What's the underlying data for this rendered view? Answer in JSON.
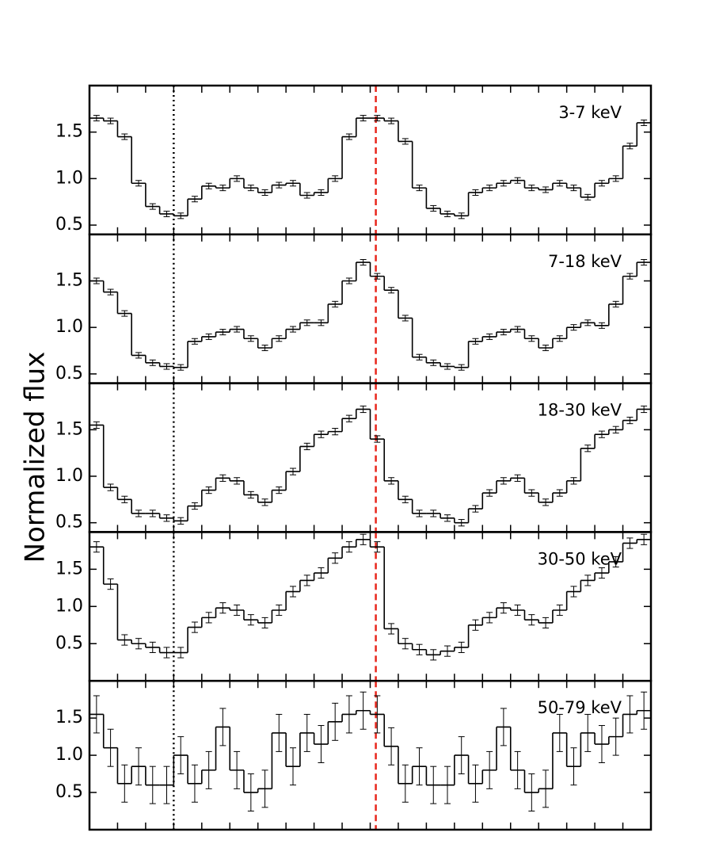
{
  "ylabel": "Normalized flux",
  "vlines": [
    {
      "x": 0.3,
      "color": "#000000",
      "style": "dotted"
    },
    {
      "x": 1.02,
      "color": "#e8261c",
      "style": "dashed"
    }
  ],
  "chart_data": [
    {
      "type": "histogram",
      "label": "3-7 keV",
      "xlim": [
        0,
        2
      ],
      "xticks": [
        0,
        0.1,
        0.2,
        0.3,
        0.4,
        0.5,
        0.6,
        0.7,
        0.8,
        0.9,
        1,
        1.1,
        1.2,
        1.3,
        1.4,
        1.5,
        1.6,
        1.7,
        1.8,
        1.9,
        2
      ],
      "ylim": [
        0.4,
        2.0
      ],
      "yticks": [
        0.5,
        {
          "value": 1,
          "label": "1.0"
        },
        1.5
      ],
      "bins": [
        0,
        0.05,
        0.1,
        0.15,
        0.2,
        0.25,
        0.3,
        0.35,
        0.4,
        0.45,
        0.5,
        0.55,
        0.6,
        0.65,
        0.7,
        0.75,
        0.8,
        0.85,
        0.9,
        0.95,
        1,
        1.05,
        1.1,
        1.15,
        1.2,
        1.25,
        1.3,
        1.35,
        1.4,
        1.45,
        1.5,
        1.55,
        1.6,
        1.65,
        1.7,
        1.75,
        1.8,
        1.85,
        1.9,
        1.95,
        2
      ],
      "values": [
        1.65,
        1.62,
        1.45,
        0.95,
        0.7,
        0.62,
        0.6,
        0.78,
        0.92,
        0.9,
        1.0,
        0.9,
        0.85,
        0.93,
        0.95,
        0.82,
        0.85,
        1.0,
        1.45,
        1.65,
        1.65,
        1.62,
        1.4,
        0.9,
        0.68,
        0.62,
        0.6,
        0.85,
        0.9,
        0.95,
        0.98,
        0.9,
        0.88,
        0.95,
        0.9,
        0.8,
        0.95,
        1.0,
        1.35,
        1.6
      ],
      "errors": [
        0.03,
        0.03,
        0.03,
        0.03,
        0.03,
        0.03,
        0.03,
        0.03,
        0.03,
        0.03,
        0.03,
        0.03,
        0.03,
        0.03,
        0.03,
        0.03,
        0.03,
        0.03,
        0.03,
        0.03,
        0.03,
        0.03,
        0.03,
        0.03,
        0.03,
        0.03,
        0.03,
        0.03,
        0.03,
        0.03,
        0.03,
        0.03,
        0.03,
        0.03,
        0.03,
        0.03,
        0.03,
        0.03,
        0.03,
        0.03
      ]
    },
    {
      "type": "histogram",
      "label": "7-18 keV",
      "xlim": [
        0,
        2
      ],
      "xticks": [
        0,
        0.1,
        0.2,
        0.3,
        0.4,
        0.5,
        0.6,
        0.7,
        0.8,
        0.9,
        1,
        1.1,
        1.2,
        1.3,
        1.4,
        1.5,
        1.6,
        1.7,
        1.8,
        1.9,
        2
      ],
      "ylim": [
        0.4,
        2.0
      ],
      "yticks": [
        0.5,
        {
          "value": 1,
          "label": "1.0"
        },
        1.5
      ],
      "bins": [
        0,
        0.05,
        0.1,
        0.15,
        0.2,
        0.25,
        0.3,
        0.35,
        0.4,
        0.45,
        0.5,
        0.55,
        0.6,
        0.65,
        0.7,
        0.75,
        0.8,
        0.85,
        0.9,
        0.95,
        1,
        1.05,
        1.1,
        1.15,
        1.2,
        1.25,
        1.3,
        1.35,
        1.4,
        1.45,
        1.5,
        1.55,
        1.6,
        1.65,
        1.7,
        1.75,
        1.8,
        1.85,
        1.9,
        1.95,
        2
      ],
      "values": [
        1.5,
        1.38,
        1.15,
        0.7,
        0.62,
        0.58,
        0.57,
        0.85,
        0.9,
        0.95,
        0.98,
        0.88,
        0.78,
        0.88,
        0.98,
        1.05,
        1.05,
        1.25,
        1.5,
        1.7,
        1.55,
        1.4,
        1.1,
        0.68,
        0.62,
        0.58,
        0.57,
        0.85,
        0.9,
        0.95,
        0.98,
        0.88,
        0.78,
        0.88,
        1.0,
        1.05,
        1.02,
        1.25,
        1.55,
        1.7
      ],
      "errors": [
        0.03,
        0.03,
        0.03,
        0.03,
        0.03,
        0.03,
        0.03,
        0.03,
        0.03,
        0.03,
        0.03,
        0.03,
        0.03,
        0.03,
        0.03,
        0.03,
        0.03,
        0.03,
        0.03,
        0.03,
        0.03,
        0.03,
        0.03,
        0.03,
        0.03,
        0.03,
        0.03,
        0.03,
        0.03,
        0.03,
        0.03,
        0.03,
        0.03,
        0.03,
        0.03,
        0.03,
        0.03,
        0.03,
        0.03,
        0.03
      ]
    },
    {
      "type": "histogram",
      "label": "18-30 keV",
      "xlim": [
        0,
        2
      ],
      "xticks": [
        0,
        0.1,
        0.2,
        0.3,
        0.4,
        0.5,
        0.6,
        0.7,
        0.8,
        0.9,
        1,
        1.1,
        1.2,
        1.3,
        1.4,
        1.5,
        1.6,
        1.7,
        1.8,
        1.9,
        2
      ],
      "ylim": [
        0.4,
        2.0
      ],
      "yticks": [
        0.5,
        {
          "value": 1,
          "label": "1.0"
        },
        1.5
      ],
      "bins": [
        0,
        0.05,
        0.1,
        0.15,
        0.2,
        0.25,
        0.3,
        0.35,
        0.4,
        0.45,
        0.5,
        0.55,
        0.6,
        0.65,
        0.7,
        0.75,
        0.8,
        0.85,
        0.9,
        0.95,
        1,
        1.05,
        1.1,
        1.15,
        1.2,
        1.25,
        1.3,
        1.35,
        1.4,
        1.45,
        1.5,
        1.55,
        1.6,
        1.65,
        1.7,
        1.75,
        1.8,
        1.85,
        1.9,
        1.95,
        2
      ],
      "values": [
        1.55,
        0.88,
        0.75,
        0.6,
        0.6,
        0.55,
        0.52,
        0.68,
        0.85,
        0.98,
        0.95,
        0.8,
        0.72,
        0.85,
        1.05,
        1.32,
        1.45,
        1.48,
        1.62,
        1.72,
        1.4,
        0.95,
        0.75,
        0.6,
        0.6,
        0.55,
        0.5,
        0.65,
        0.82,
        0.95,
        0.98,
        0.82,
        0.72,
        0.82,
        0.95,
        1.3,
        1.45,
        1.5,
        1.6,
        1.72
      ],
      "errors": [
        0.035,
        0.035,
        0.035,
        0.035,
        0.035,
        0.035,
        0.035,
        0.035,
        0.035,
        0.035,
        0.035,
        0.035,
        0.035,
        0.035,
        0.035,
        0.035,
        0.035,
        0.035,
        0.035,
        0.035,
        0.035,
        0.035,
        0.035,
        0.035,
        0.035,
        0.035,
        0.035,
        0.035,
        0.035,
        0.035,
        0.035,
        0.035,
        0.035,
        0.035,
        0.035,
        0.035,
        0.035,
        0.035,
        0.035,
        0.035
      ]
    },
    {
      "type": "histogram",
      "label": "30-50 keV",
      "xlim": [
        0,
        2
      ],
      "xticks": [
        0,
        0.1,
        0.2,
        0.3,
        0.4,
        0.5,
        0.6,
        0.7,
        0.8,
        0.9,
        1,
        1.1,
        1.2,
        1.3,
        1.4,
        1.5,
        1.6,
        1.7,
        1.8,
        1.9,
        2
      ],
      "ylim": [
        0,
        2.0
      ],
      "yticks": [
        0.5,
        {
          "value": 1,
          "label": "1.0"
        },
        1.5
      ],
      "bins": [
        0,
        0.05,
        0.1,
        0.15,
        0.2,
        0.25,
        0.3,
        0.35,
        0.4,
        0.45,
        0.5,
        0.55,
        0.6,
        0.65,
        0.7,
        0.75,
        0.8,
        0.85,
        0.9,
        0.95,
        1,
        1.05,
        1.1,
        1.15,
        1.2,
        1.25,
        1.3,
        1.35,
        1.4,
        1.45,
        1.5,
        1.55,
        1.6,
        1.65,
        1.7,
        1.75,
        1.8,
        1.85,
        1.9,
        1.95,
        2
      ],
      "values": [
        1.8,
        1.3,
        0.55,
        0.5,
        0.45,
        0.38,
        0.38,
        0.72,
        0.85,
        0.98,
        0.95,
        0.82,
        0.78,
        0.95,
        1.2,
        1.35,
        1.45,
        1.65,
        1.8,
        1.9,
        1.8,
        0.7,
        0.5,
        0.42,
        0.35,
        0.4,
        0.45,
        0.75,
        0.85,
        0.98,
        0.95,
        0.82,
        0.78,
        0.95,
        1.2,
        1.35,
        1.45,
        1.6,
        1.85,
        1.9
      ],
      "errors": [
        0.07,
        0.07,
        0.07,
        0.07,
        0.07,
        0.07,
        0.07,
        0.07,
        0.07,
        0.07,
        0.07,
        0.07,
        0.07,
        0.07,
        0.07,
        0.07,
        0.07,
        0.07,
        0.07,
        0.07,
        0.07,
        0.07,
        0.07,
        0.07,
        0.07,
        0.07,
        0.07,
        0.07,
        0.07,
        0.07,
        0.07,
        0.07,
        0.07,
        0.07,
        0.07,
        0.07,
        0.07,
        0.07,
        0.07,
        0.07
      ]
    },
    {
      "type": "histogram",
      "label": "50-79 keV",
      "xlim": [
        0,
        2
      ],
      "xticks": [
        0,
        0.1,
        0.2,
        0.3,
        0.4,
        0.5,
        0.6,
        0.7,
        0.8,
        0.9,
        1,
        1.1,
        1.2,
        1.3,
        1.4,
        1.5,
        1.6,
        1.7,
        1.8,
        1.9,
        2
      ],
      "ylim": [
        0,
        2.0
      ],
      "yticks": [
        0.5,
        {
          "value": 1,
          "label": "1.0"
        },
        1.5
      ],
      "bins": [
        0,
        0.05,
        0.1,
        0.15,
        0.2,
        0.25,
        0.3,
        0.35,
        0.4,
        0.45,
        0.5,
        0.55,
        0.6,
        0.65,
        0.7,
        0.75,
        0.8,
        0.85,
        0.9,
        0.95,
        1,
        1.05,
        1.1,
        1.15,
        1.2,
        1.25,
        1.3,
        1.35,
        1.4,
        1.45,
        1.5,
        1.55,
        1.6,
        1.65,
        1.7,
        1.75,
        1.8,
        1.85,
        1.9,
        1.95,
        2
      ],
      "values": [
        1.55,
        1.1,
        0.62,
        0.85,
        0.6,
        0.6,
        1.0,
        0.62,
        0.8,
        1.38,
        0.8,
        0.5,
        0.55,
        1.3,
        0.85,
        1.3,
        1.15,
        1.45,
        1.55,
        1.6,
        1.55,
        1.12,
        0.62,
        0.85,
        0.6,
        0.6,
        1.0,
        0.62,
        0.8,
        1.38,
        0.8,
        0.5,
        0.55,
        1.3,
        0.85,
        1.3,
        1.15,
        1.25,
        1.55,
        1.6
      ],
      "errors": [
        0.25,
        0.25,
        0.25,
        0.25,
        0.25,
        0.25,
        0.25,
        0.25,
        0.25,
        0.25,
        0.25,
        0.25,
        0.25,
        0.25,
        0.25,
        0.25,
        0.25,
        0.25,
        0.25,
        0.25,
        0.25,
        0.25,
        0.25,
        0.25,
        0.25,
        0.25,
        0.25,
        0.25,
        0.25,
        0.25,
        0.25,
        0.25,
        0.25,
        0.25,
        0.25,
        0.25,
        0.25,
        0.25,
        0.25,
        0.25
      ]
    }
  ]
}
